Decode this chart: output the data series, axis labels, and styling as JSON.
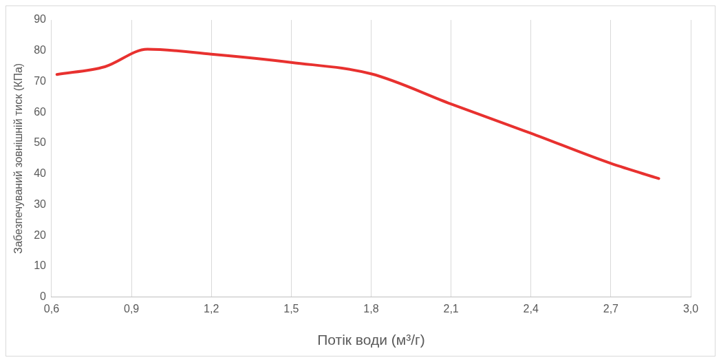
{
  "chart_data": {
    "type": "line",
    "xlabel": "Потік води (м³/г)",
    "ylabel": "Забезпечуваний зовнішній тиск (КПа)",
    "x": [
      0.62,
      0.8,
      0.96,
      1.2,
      1.5,
      1.8,
      2.1,
      2.4,
      2.7,
      2.88
    ],
    "series": [
      {
        "color": "#e8312f",
        "values": [
          72.3,
          74.8,
          80.5,
          78.9,
          76.2,
          72.5,
          62.7,
          53.2,
          43.4,
          38.5
        ]
      }
    ],
    "xlim": [
      0.6,
      3.0
    ],
    "xticks": [
      {
        "value": 0.6,
        "label": "0,6"
      },
      {
        "value": 0.9,
        "label": "0,9"
      },
      {
        "value": 1.2,
        "label": "1,2"
      },
      {
        "value": 1.5,
        "label": "1,5"
      },
      {
        "value": 1.8,
        "label": "1,8"
      },
      {
        "value": 2.1,
        "label": "2,1"
      },
      {
        "value": 2.4,
        "label": "2,4"
      },
      {
        "value": 2.7,
        "label": "2,7"
      },
      {
        "value": 3.0,
        "label": "3,0"
      }
    ],
    "ylim": [
      0,
      90
    ],
    "yticks": [
      0,
      10,
      20,
      30,
      40,
      50,
      60,
      70,
      80,
      90
    ],
    "grid": "x",
    "legend": false,
    "marker": "none",
    "line_style": "solid"
  }
}
